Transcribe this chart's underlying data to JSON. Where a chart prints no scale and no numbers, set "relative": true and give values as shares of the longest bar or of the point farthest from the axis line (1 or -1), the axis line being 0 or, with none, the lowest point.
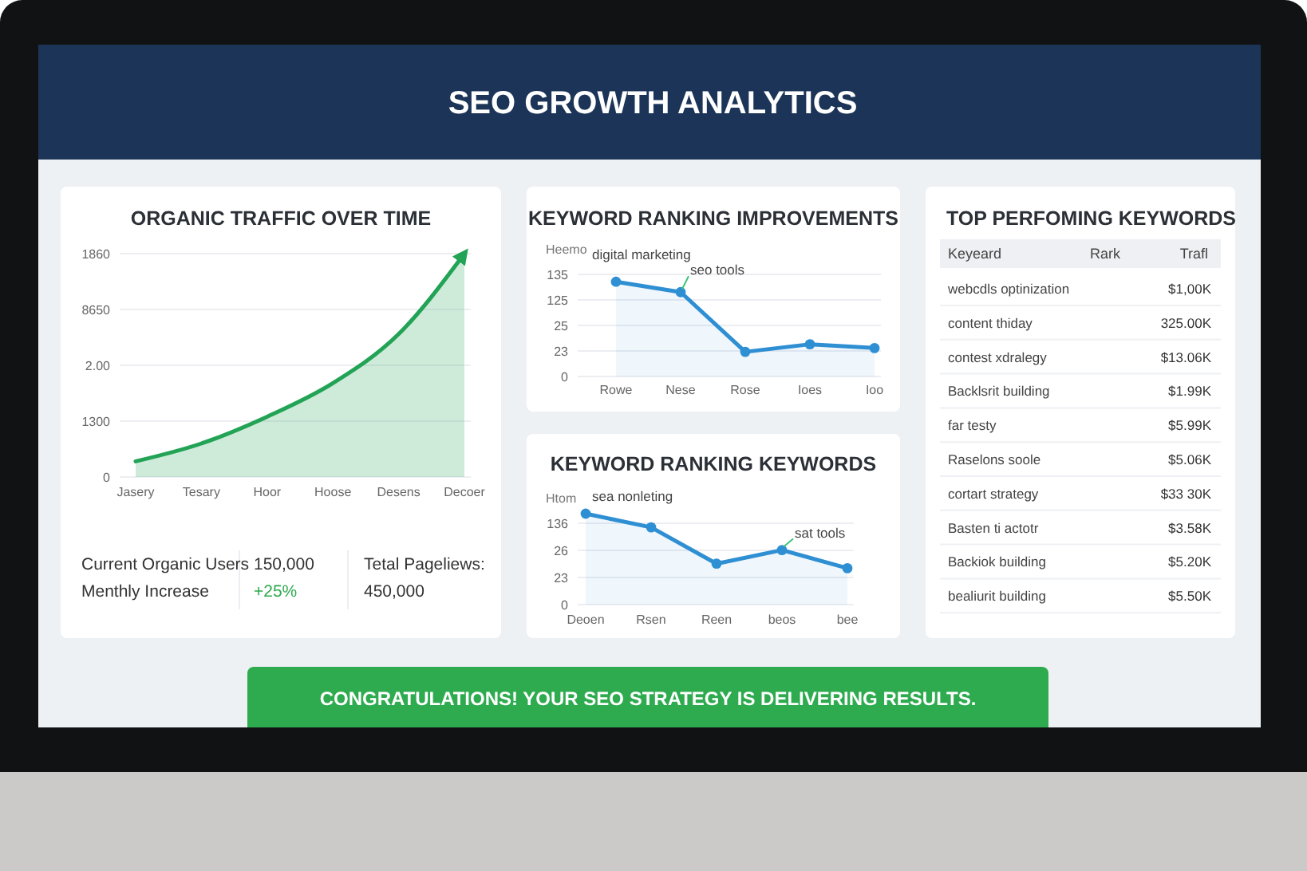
{
  "chart_data": [
    {
      "type": "other",
      "title": "SEO GROWTH ANALYTICS"
    },
    {
      "type": "area",
      "title": "ORGANIC TRAFFIC OVER TIME",
      "relative": true,
      "categories": [
        "Jasery",
        "Tesary",
        "Hoor",
        "Hoose",
        "Desens",
        "Decoer"
      ],
      "series": [
        {
          "color": "#22a355",
          "values": [
            0.07,
            0.15,
            0.27,
            0.42,
            0.64,
            1
          ]
        }
      ],
      "grid": "y",
      "marker": "none",
      "annotations": [
        "0",
        "1300",
        "2.00",
        "8650",
        "1860"
      ]
    },
    {
      "type": "other",
      "annotations": [
        "Current Organic Users",
        "150,000",
        "Tetal Pageliews:",
        "Menthly Increase",
        "+25%",
        "450,000"
      ],
      "colors": [
        "#333333",
        "#333333",
        "#333333",
        "#333333",
        "#2eaa4e",
        "#333333"
      ]
    },
    {
      "type": "area",
      "title": "KEYWORD RANKING IMPROVEMENTS",
      "ylabel": "Heemo",
      "relative": true,
      "categories": [
        "Rowe",
        "Nese",
        "Rose",
        "Ioes",
        "Ioo"
      ],
      "series": [
        {
          "color": "#2f8fd3",
          "values": [
            1,
            0.89,
            0.26,
            0.34,
            0.3
          ]
        }
      ],
      "grid": "y",
      "marker": "circle",
      "annotations": [
        "0",
        "23",
        "25",
        "125",
        "135",
        {
          "text": "digital marketing",
          "x": "Rowe",
          "y": 1
        },
        {
          "text": "seo tools",
          "x": "Nese",
          "y": 0.89
        }
      ]
    },
    {
      "type": "area",
      "title": "KEYWORD RANKING KEYWORDS",
      "ylabel": "Htom",
      "relative": true,
      "categories": [
        "Deoen",
        "Rsen",
        "Reen",
        "beos",
        "bee"
      ],
      "series": [
        {
          "color": "#2f8fd3",
          "values": [
            1,
            0.85,
            0.45,
            0.6,
            0.4
          ]
        }
      ],
      "grid": "y",
      "marker": "circle",
      "annotations": [
        "0",
        "23",
        "26",
        "136",
        {
          "text": "sea nonleting",
          "x": "Deoen",
          "y": 1
        },
        {
          "text": "sat tools",
          "x": "beos",
          "y": 0.6
        }
      ]
    },
    {
      "type": "other",
      "title": "TOP PERFOMING KEYWORDS",
      "categories": [
        "Keyeard",
        "Rark",
        "Trafl"
      ],
      "y_categories": [
        "webcdls optinization",
        "content thiday",
        "contest xdralegy",
        "Backlsrit building",
        "far testy",
        "Raselons soole",
        "cortart strategy",
        "Basten ti actotr",
        "Backiok building",
        "bealiurit building"
      ],
      "cell_labels": [
        [
          null,
          "$1,00K"
        ],
        [
          null,
          "325.00K"
        ],
        [
          null,
          "$13.06K"
        ],
        [
          null,
          "$1.99K"
        ],
        [
          null,
          "$5.99K"
        ],
        [
          null,
          "$5.06K"
        ],
        [
          null,
          "$33 30K"
        ],
        [
          null,
          "$3.58K"
        ],
        [
          null,
          "$5.20K"
        ],
        [
          null,
          "$5.50K"
        ]
      ]
    },
    {
      "type": "other",
      "annotations": [
        "CONGRATULATIONS! YOUR SEO STRATEGY IS DELIVERING RESULTS."
      ]
    }
  ]
}
